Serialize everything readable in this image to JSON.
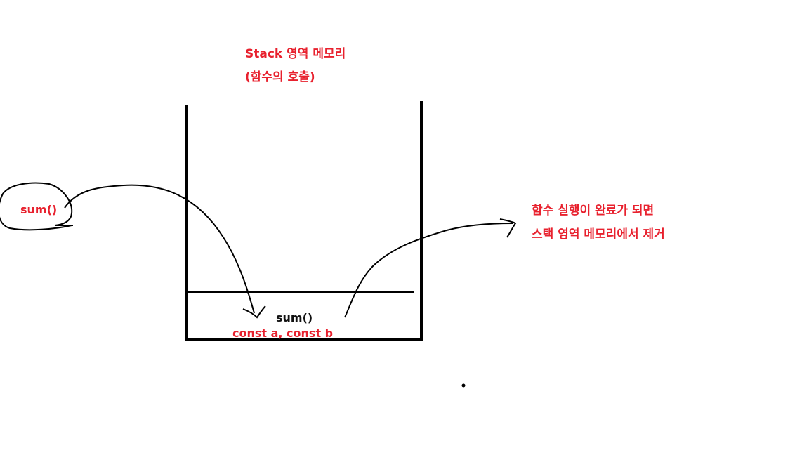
{
  "title": {
    "line1": "Stack 영역 메모리",
    "line2": "(함수의 호출)"
  },
  "caller": {
    "label": "sum()"
  },
  "stack_frame": {
    "function_label": "sum()",
    "variables_label": "const a, const b"
  },
  "note": {
    "line1": "함수 실행이 완료가 되면",
    "line2": "스택 영역 메모리에서 제거"
  },
  "colors": {
    "annotation": "#e8212e",
    "ink": "#111111"
  }
}
